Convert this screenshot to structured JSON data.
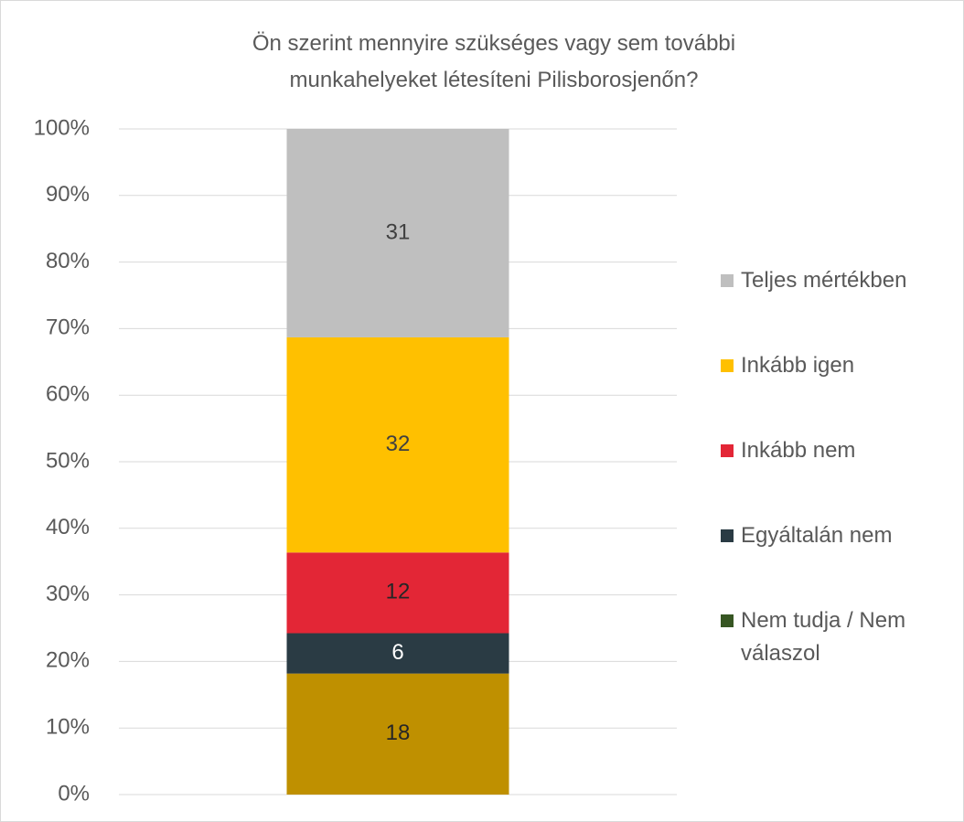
{
  "chart_data": {
    "type": "stacked_bar",
    "stacking": "percent",
    "title": "Ön szerint mennyire szükséges vagy sem további munkahelyeket létesíteni Pilisborosjenőn?",
    "categories": [
      null
    ],
    "series": [
      {
        "name": "Nem tudja / Nem válaszol",
        "color": "#bf9000",
        "legend_color": "#375623",
        "label_color": "#262626",
        "values": [
          18
        ]
      },
      {
        "name": "Egyáltalán nem",
        "color": "#2a3b44",
        "label_color": "#ffffff",
        "values": [
          6
        ]
      },
      {
        "name": "Inkább nem",
        "color": "#e32636",
        "label_color": "#262626",
        "values": [
          12
        ]
      },
      {
        "name": "Inkább igen",
        "color": "#ffc000",
        "label_color": "#404040",
        "values": [
          32
        ]
      },
      {
        "name": "Teljes mértékben",
        "color": "#bfbfbf",
        "label_color": "#404040",
        "values": [
          31
        ]
      }
    ],
    "ylim": [
      0,
      100
    ],
    "yticks": [
      {
        "value": 0,
        "label": "0%"
      },
      {
        "value": 10,
        "label": "10%"
      },
      {
        "value": 20,
        "label": "20%"
      },
      {
        "value": 30,
        "label": "30%"
      },
      {
        "value": 40,
        "label": "40%"
      },
      {
        "value": 50,
        "label": "50%"
      },
      {
        "value": 60,
        "label": "60%"
      },
      {
        "value": 70,
        "label": "70%"
      },
      {
        "value": 80,
        "label": "80%"
      },
      {
        "value": 90,
        "label": "90%"
      },
      {
        "value": 100,
        "label": "100%"
      }
    ],
    "grid": true,
    "legend": "right"
  }
}
